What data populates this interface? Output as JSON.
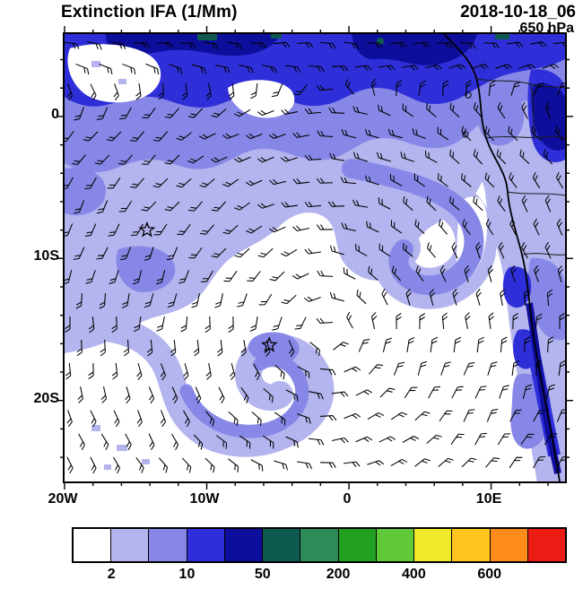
{
  "header": {
    "title": "Extinction IFA (1/Mm)",
    "datetime": "2018-10-18_06",
    "level": "650 hPa"
  },
  "chart_data": {
    "type": "heatmap",
    "title": "Extinction IFA (1/Mm)",
    "datetime": "2018-10-18_06",
    "pressure_level": "650 hPa",
    "units": "1/Mm",
    "x_axis": {
      "tick_labels": [
        "20W",
        "10W",
        "0",
        "10E"
      ],
      "tick_lons": [
        -20,
        -10,
        0,
        10
      ],
      "range": [
        -20,
        15.2
      ],
      "minor_step_deg": 2
    },
    "y_axis": {
      "tick_labels": [
        "0",
        "10S",
        "20S"
      ],
      "tick_lats": [
        0,
        -10,
        -20
      ],
      "range": [
        -25.7,
        5.8
      ],
      "minor_step_deg": 2
    },
    "colorbar": {
      "cell_colors": [
        "#ffffff",
        "#b4b4ef",
        "#8787e7",
        "#2f2fd9",
        "#0e0e9d",
        "#0f5a50",
        "#2e8b57",
        "#22a022",
        "#5fc93a",
        "#f0e82a",
        "#ffc41e",
        "#ff8c1a",
        "#ea1c14"
      ],
      "tick_labels": [
        "2",
        "10",
        "50",
        "200",
        "400",
        "600"
      ],
      "labeled_boundary_indices": [
        1,
        3,
        5,
        7,
        9,
        11
      ]
    },
    "overlays": {
      "wind_barbs": true,
      "coastline": true,
      "markers": [
        {
          "type": "star",
          "lon": -14.2,
          "lat": -8.0
        },
        {
          "type": "star",
          "lon": -5.6,
          "lat": -16.1
        }
      ]
    }
  }
}
